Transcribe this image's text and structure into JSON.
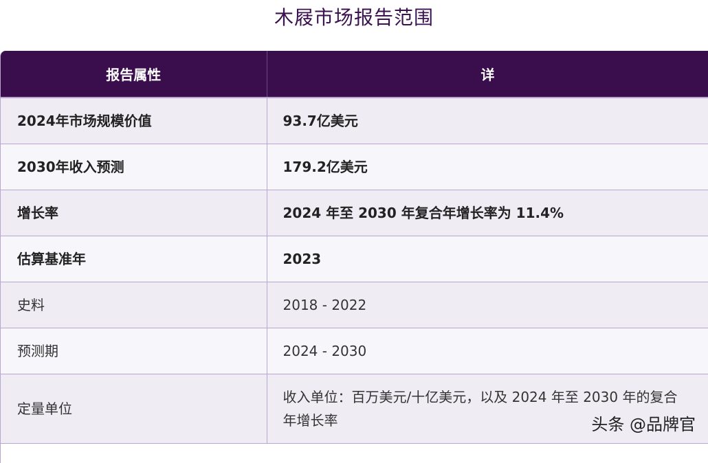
{
  "page": {
    "title": "木屐市场报告范围"
  },
  "table": {
    "headers": [
      "报告属性",
      "详"
    ],
    "rows": [
      {
        "label": "2024年市场规模价值",
        "value": "93.7亿美元"
      },
      {
        "label": "2030年收入预测",
        "value": "179.2亿美元"
      },
      {
        "label": "增长率",
        "value": "2024 年至 2030 年复合年增长率为 11.4%"
      },
      {
        "label": "估算基准年",
        "value": "2023"
      },
      {
        "label": "史料",
        "value": "2018 - 2022"
      },
      {
        "label": "预测期",
        "value": "2024 - 2030"
      },
      {
        "label": "定量单位",
        "value": "收入单位：百万美元/十亿美元，以及 2024 年至 2030 年的复合年增长率"
      }
    ]
  },
  "watermark": {
    "text": "头条 @品牌官"
  }
}
